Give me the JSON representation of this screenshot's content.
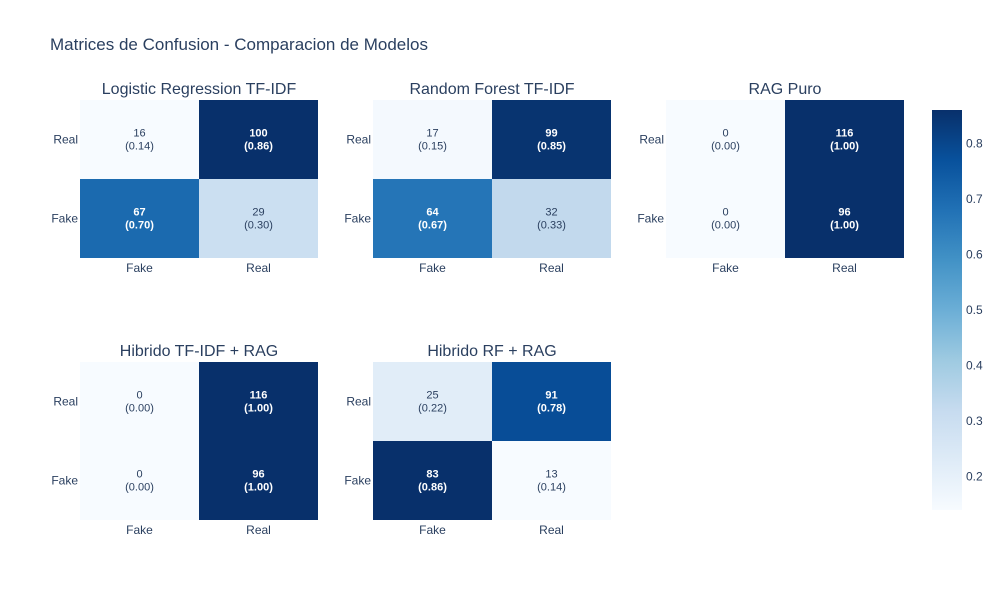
{
  "title": "Matrices de Confusion - Comparacion de Modelos",
  "colors": {
    "text": "#2a3f5f",
    "scale": [
      "#f7fbff",
      "#deebf7",
      "#c6dbef",
      "#9ecae1",
      "#6baed6",
      "#4292c6",
      "#2171b5",
      "#08519c",
      "#08306b"
    ]
  },
  "chart_data": {
    "type": "heatmap",
    "x_categories": [
      "Fake",
      "Real"
    ],
    "y_categories": [
      "Fake",
      "Real"
    ],
    "colorscale": "Blues",
    "zlim": [
      0.14,
      0.86
    ],
    "colorbar_ticks": [
      "0.2",
      "0.3",
      "0.4",
      "0.5",
      "0.6",
      "0.7",
      "0.8"
    ],
    "panels": [
      {
        "title": "Logistic Regression TF-IDF",
        "counts": [
          [
            67,
            29
          ],
          [
            16,
            100
          ]
        ],
        "norm": [
          [
            0.7,
            0.3
          ],
          [
            0.14,
            0.86
          ]
        ],
        "labels": [
          [
            "67",
            "(0.70)",
            "29",
            "(0.30)"
          ],
          [
            "16",
            "(0.14)",
            "100",
            "(0.86)"
          ]
        ]
      },
      {
        "title": "Random Forest TF-IDF",
        "counts": [
          [
            64,
            32
          ],
          [
            17,
            99
          ]
        ],
        "norm": [
          [
            0.67,
            0.33
          ],
          [
            0.15,
            0.85
          ]
        ],
        "labels": [
          [
            "64",
            "(0.67)",
            "32",
            "(0.33)"
          ],
          [
            "17",
            "(0.15)",
            "99",
            "(0.85)"
          ]
        ]
      },
      {
        "title": "RAG Puro",
        "counts": [
          [
            0,
            96
          ],
          [
            0,
            116
          ]
        ],
        "norm": [
          [
            0.0,
            1.0
          ],
          [
            0.0,
            1.0
          ]
        ],
        "labels": [
          [
            "0",
            "(0.00)",
            "96",
            "(1.00)"
          ],
          [
            "0",
            "(0.00)",
            "116",
            "(1.00)"
          ]
        ]
      },
      {
        "title": "Hibrido TF-IDF + RAG",
        "counts": [
          [
            0,
            96
          ],
          [
            0,
            116
          ]
        ],
        "norm": [
          [
            0.0,
            1.0
          ],
          [
            0.0,
            1.0
          ]
        ],
        "labels": [
          [
            "0",
            "(0.00)",
            "96",
            "(1.00)"
          ],
          [
            "0",
            "(0.00)",
            "116",
            "(1.00)"
          ]
        ]
      },
      {
        "title": "Hibrido RF + RAG",
        "counts": [
          [
            83,
            13
          ],
          [
            25,
            91
          ]
        ],
        "norm": [
          [
            0.86,
            0.14
          ],
          [
            0.22,
            0.78
          ]
        ],
        "labels": [
          [
            "83",
            "(0.86)",
            "13",
            "(0.14)"
          ],
          [
            "25",
            "(0.22)",
            "91",
            "(0.78)"
          ]
        ]
      }
    ]
  }
}
